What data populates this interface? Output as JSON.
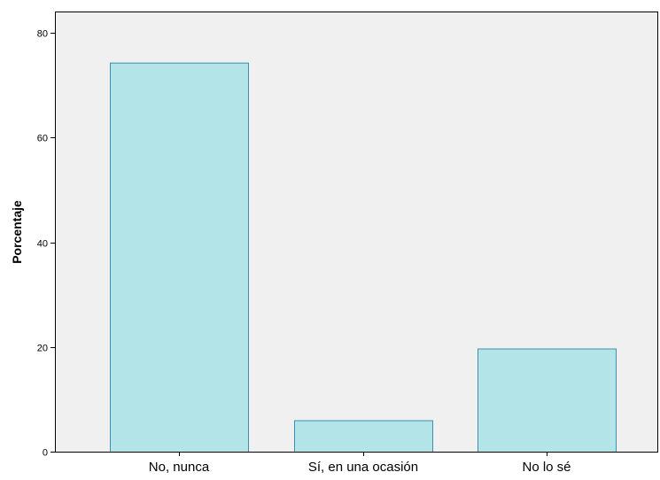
{
  "chart_data": {
    "type": "bar",
    "title": "",
    "xlabel": "",
    "ylabel": "Porcentaje",
    "categories": [
      "No, nunca",
      "Sí, en una ocasión",
      "No lo sé"
    ],
    "values": [
      74.3,
      6.0,
      19.7
    ],
    "ylim": [
      0,
      85
    ],
    "yticks": [
      0,
      20,
      40,
      60,
      80
    ],
    "grid": false,
    "legend": "none",
    "colors": {
      "bar_fill": "#b3e5e8",
      "bar_stroke": "#3e8fb0",
      "plot_background": "#f0f0f0",
      "axis": "#000000"
    }
  }
}
